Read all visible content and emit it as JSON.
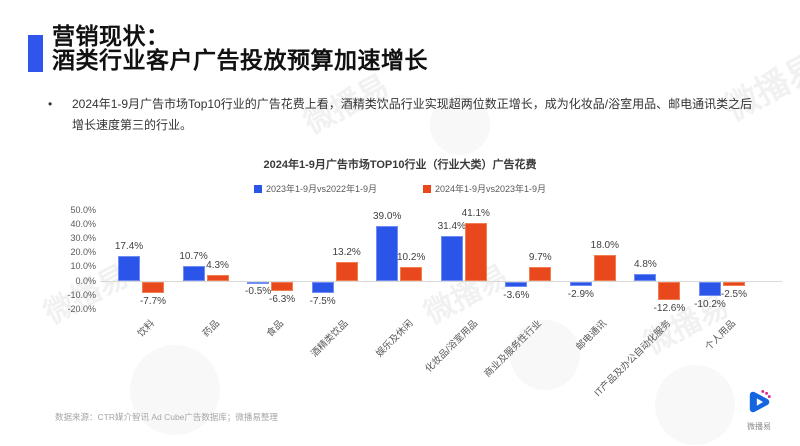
{
  "slide": {
    "title_line1": "营销现状：",
    "title_line2": "酒类行业客户广告投放预算加速增长",
    "bullet": "2024年1-9月广告市场Top10行业的广告花费上看，酒精类饮品行业实现超两位数正增长，成为化妆品/浴室用品、邮电通讯类之后增长速度第三的行业。",
    "source": "数据来源：CTR媒介智讯 Ad Cube广告数据库；微播易整理",
    "logo_text": "微播易",
    "watermark_text": "微播易"
  },
  "colors": {
    "accent_blue": "#2F55EB",
    "bar_blue": "#2B54E8",
    "bar_red": "#E8481C",
    "axis_line": "#D9D9D9",
    "tick_gray": "#595959"
  },
  "chart_data": {
    "type": "bar",
    "title": "2024年1-9月广告市场TOP10行业（行业大类）广告花费",
    "categories": [
      "饮料",
      "药品",
      "食品",
      "酒精类饮品",
      "娱乐及休闲",
      "化妆品/浴室用品",
      "商业及服务性行业",
      "邮电通讯",
      "IT产品及办公自动化服务",
      "个人用品"
    ],
    "series": [
      {
        "name": "2023年1-9月vs2022年1-9月",
        "color": "#2B54E8",
        "values": [
          17.4,
          10.7,
          -0.5,
          -7.5,
          39.0,
          31.4,
          -3.6,
          -2.9,
          4.8,
          -10.2
        ]
      },
      {
        "name": "2024年1-9月vs2023年1-9月",
        "color": "#E8481C",
        "values": [
          -7.7,
          4.3,
          -6.3,
          13.2,
          10.2,
          41.1,
          9.7,
          18.0,
          -12.6,
          -2.5
        ]
      }
    ],
    "y_ticks": [
      "50.0%",
      "40.0%",
      "30.0%",
      "20.0%",
      "10.0%",
      "0.0%",
      "-10.0%",
      "-20.0%"
    ],
    "ylim": [
      -20,
      50
    ],
    "grid": false,
    "legend_position": "top",
    "unit": "%",
    "data_labels": true
  }
}
